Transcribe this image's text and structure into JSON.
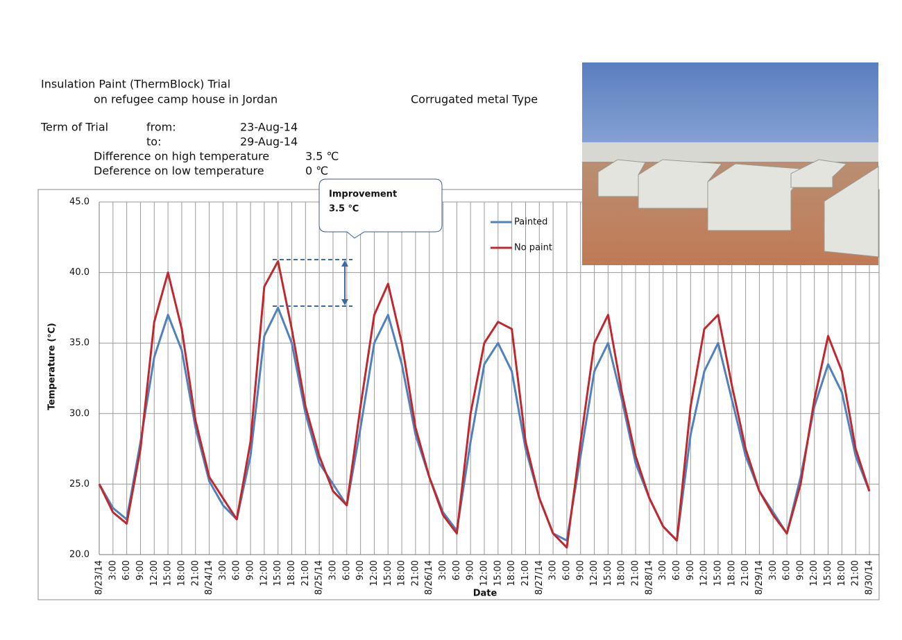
{
  "header": {
    "title": "Insulation Paint (ThermBlock) Trial",
    "subtitle": "on refugee camp house in Jordan",
    "type_note": "Corrugated metal Type",
    "term_label": "Term of Trial",
    "from_label": "from:",
    "from_value": "23-Aug-14",
    "to_label": "to:",
    "to_value": "29-Aug-14",
    "high_label": "Difference on high temperature",
    "high_value": "3.5  ℃",
    "low_label": "Deference on low temperature",
    "low_value": "0  ℃"
  },
  "chart_data": {
    "type": "line",
    "x_label": "Date",
    "y_label": "Temperature (℃)",
    "annotation": {
      "title": "Improvement",
      "text": "3.5  ℃"
    },
    "categories": [
      "8/23/14",
      "3:00",
      "6:00",
      "9:00",
      "12:00",
      "15:00",
      "18:00",
      "21:00",
      "8/24/14",
      "3:00",
      "6:00",
      "9:00",
      "12:00",
      "15:00",
      "18:00",
      "21:00",
      "8/25/14",
      "3:00",
      "6:00",
      "9:00",
      "12:00",
      "15:00",
      "18:00",
      "21:00",
      "8/26/14",
      "3:00",
      "6:00",
      "9:00",
      "12:00",
      "15:00",
      "18:00",
      "21:00",
      "8/27/14",
      "3:00",
      "6:00",
      "9:00",
      "12:00",
      "15:00",
      "18:00",
      "21:00",
      "8/28/14",
      "3:00",
      "6:00",
      "9:00",
      "12:00",
      "15:00",
      "18:00",
      "21:00",
      "8/29/14",
      "3:00",
      "6:00",
      "9:00",
      "12:00",
      "15:00",
      "18:00",
      "21:00",
      "8/30/14"
    ],
    "series": [
      {
        "name": "Painted",
        "color": "#4f81bd",
        "values": [
          25.0,
          23.3,
          22.5,
          28,
          34,
          37,
          34.5,
          29,
          25.2,
          23.5,
          22.5,
          27,
          35.5,
          37.5,
          35,
          30,
          26.5,
          25,
          23.5,
          29,
          35,
          37,
          33.5,
          28.5,
          25.5,
          23,
          21.7,
          28,
          33.5,
          35,
          33,
          27.5,
          24,
          21.5,
          21,
          27,
          33,
          35,
          31,
          26.5,
          24,
          22,
          21,
          28.5,
          33,
          35,
          31,
          27,
          24.5,
          23,
          21.5,
          25.5,
          30.5,
          33.5,
          31.5,
          27,
          24.5
        ]
      },
      {
        "name": "No paint",
        "color": "#c0282d",
        "values": [
          25.0,
          23,
          22.2,
          27.5,
          36.5,
          40,
          36,
          29.5,
          25.5,
          24,
          22.5,
          28,
          39,
          40.8,
          36,
          30.5,
          27,
          24.5,
          23.5,
          30.5,
          37,
          39.2,
          35,
          29,
          25.5,
          22.8,
          21.5,
          30,
          35,
          36.5,
          36,
          28,
          24,
          21.5,
          20.5,
          28,
          35,
          37,
          31.5,
          27,
          24,
          22,
          21,
          30.5,
          36,
          37,
          32,
          27.5,
          24.5,
          22.8,
          21.5,
          25,
          31,
          35.5,
          33,
          27.5,
          24.5
        ]
      }
    ],
    "ylim": [
      20,
      45
    ],
    "yticks": [
      {
        "value": 20,
        "label": "20.0"
      },
      {
        "value": 25,
        "label": "25.0"
      },
      {
        "value": 30,
        "label": "30.0"
      },
      {
        "value": 35,
        "label": "35.0"
      },
      {
        "value": 40,
        "label": "40.0"
      },
      {
        "value": 45,
        "label": "45.0"
      }
    ],
    "grid": true
  }
}
